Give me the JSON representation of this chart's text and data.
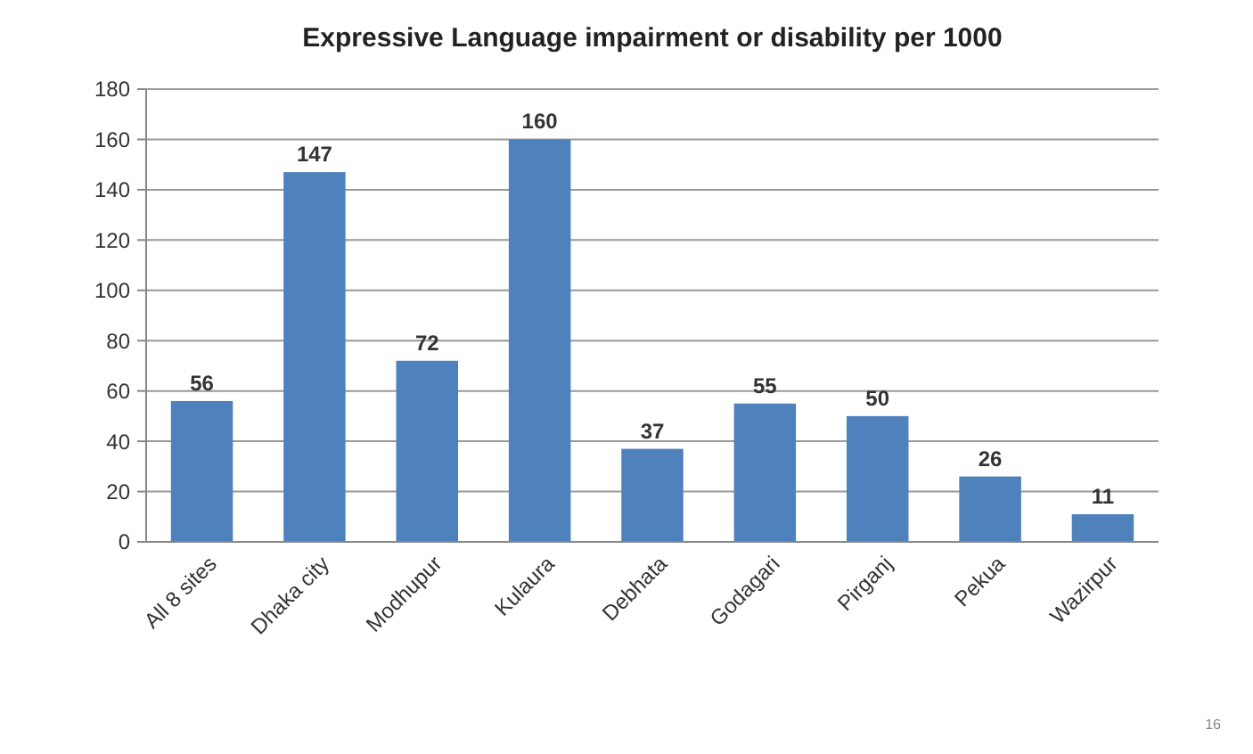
{
  "chart_data": {
    "type": "bar",
    "title": "Expressive Language impairment or disability per 1000",
    "categories": [
      "All 8 sites",
      "Dhaka city",
      "Modhupur",
      "Kulaura",
      "Debhata",
      "Godagari",
      "Pirganj",
      "Pekua",
      "Wazirpur"
    ],
    "values": [
      56,
      147,
      72,
      160,
      37,
      55,
      50,
      26,
      11
    ],
    "color": "#4f81bd",
    "ylim": [
      0,
      180
    ],
    "yticks": [
      0,
      20,
      40,
      60,
      80,
      100,
      120,
      140,
      160,
      180
    ],
    "grid": "y",
    "data_labels": true,
    "annotations": [
      "16"
    ]
  }
}
